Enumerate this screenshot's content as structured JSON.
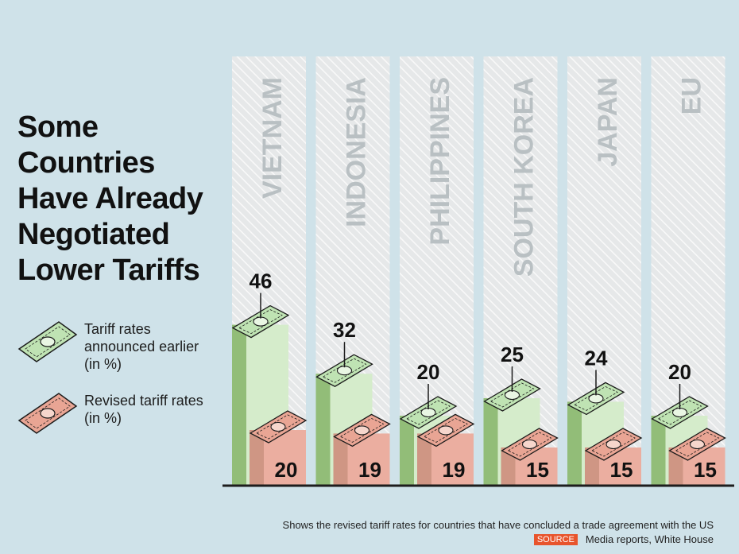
{
  "title_lines": [
    "Some",
    "Countries",
    "Have Already",
    "Negotiated",
    "Lower Tariffs"
  ],
  "legend": {
    "earlier": "Tariff rates announced earlier (in %)",
    "revised": "Revised tariff rates (in %)"
  },
  "footer": {
    "note": "Shows the revised tariff rates for countries that have concluded a trade agreement with the US",
    "source_label": "SOURCE",
    "source_text": "Media reports, White House"
  },
  "colors": {
    "background": "#cfe2e9",
    "earlier_front": "#d5eccb",
    "earlier_side": "#92bd78",
    "revised_front": "#ebaea0",
    "revised_side": "#cf9684",
    "label": "#111111",
    "country_label": "#b9c0c3"
  },
  "chart_data": {
    "type": "bar",
    "title": "Some Countries Have Already Negotiated Lower Tariffs",
    "categories": [
      "VIETNAM",
      "INDONESIA",
      "PHILIPPINES",
      "SOUTH KOREA",
      "JAPAN",
      "EU"
    ],
    "series": [
      {
        "name": "Tariff rates announced earlier (in %)",
        "values": [
          46,
          32,
          20,
          25,
          24,
          20
        ]
      },
      {
        "name": "Revised tariff rates (in %)",
        "values": [
          20,
          19,
          19,
          15,
          15,
          15
        ]
      }
    ],
    "xlabel": "",
    "ylabel": "",
    "ylim": [
      0,
      50
    ]
  }
}
